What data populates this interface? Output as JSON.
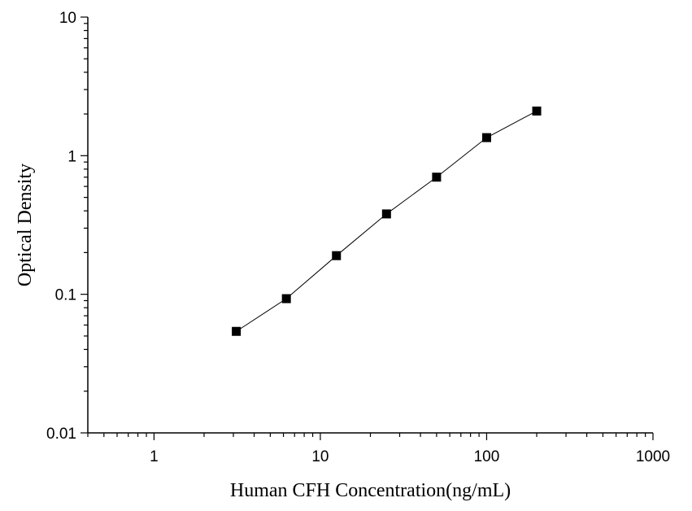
{
  "chart_data": {
    "type": "scatter",
    "title": "",
    "xlabel": "Human CFH Concentration(ng/mL)",
    "ylabel": "Optical Density",
    "x_scale": "log",
    "y_scale": "log",
    "xlim": [
      0.4,
      1000
    ],
    "ylim": [
      0.01,
      10
    ],
    "x_ticks": [
      1,
      10,
      100,
      1000
    ],
    "x_tick_labels": [
      "1",
      "10",
      "100",
      "1000"
    ],
    "y_ticks": [
      0.01,
      0.1,
      1,
      10
    ],
    "y_tick_labels": [
      "0.01",
      "0.1",
      "1",
      "10"
    ],
    "grid": false,
    "series": [
      {
        "x": [
          3.125,
          6.25,
          12.5,
          25,
          50,
          100,
          200
        ],
        "y": [
          0.054,
          0.093,
          0.19,
          0.38,
          0.7,
          1.35,
          2.1
        ],
        "marker": "square",
        "line": true,
        "color": "#000000"
      }
    ]
  }
}
